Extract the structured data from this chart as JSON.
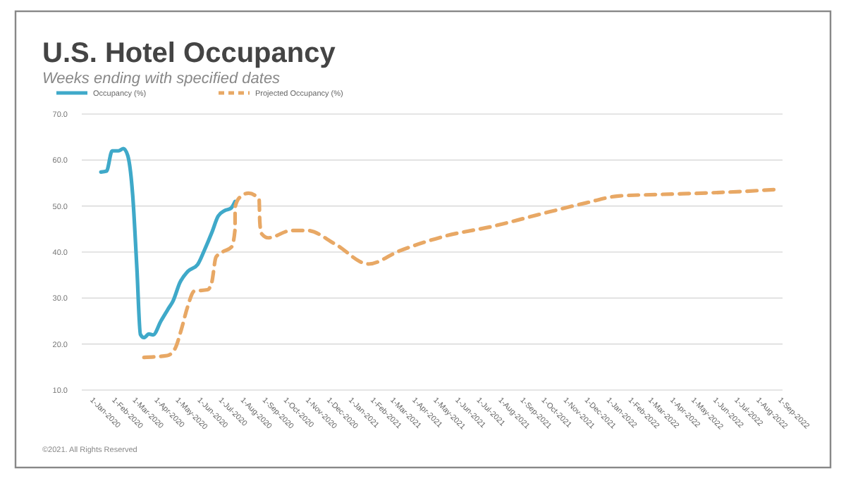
{
  "chart_data": {
    "type": "line",
    "title": "U.S. Hotel Occupancy",
    "subtitle": "Weeks ending with specified dates",
    "annotations": [
      "©2021. All Rights Reserved"
    ],
    "legend": "top left",
    "grid": "y",
    "marker": "none",
    "ylim": [
      10,
      70
    ],
    "yticks": [
      {
        "value": 10,
        "label": "10.0"
      },
      {
        "value": 20,
        "label": "20.0"
      },
      {
        "value": 30,
        "label": "30.0"
      },
      {
        "value": 40,
        "label": "40.0"
      },
      {
        "value": 50,
        "label": "50.0"
      },
      {
        "value": 60,
        "label": "60.0"
      },
      {
        "value": 70,
        "label": "70.0"
      }
    ],
    "xlim": [
      "2019-12-18",
      "2022-09-05"
    ],
    "xticks": [
      {
        "value": "2020-01-01",
        "label": "1-Jan-2020"
      },
      {
        "value": "2020-02-01",
        "label": "1-Feb-2020"
      },
      {
        "value": "2020-03-01",
        "label": "1-Mar-2020"
      },
      {
        "value": "2020-04-01",
        "label": "1-Apr-2020"
      },
      {
        "value": "2020-05-01",
        "label": "1-May-2020"
      },
      {
        "value": "2020-06-01",
        "label": "1-Jun-2020"
      },
      {
        "value": "2020-07-01",
        "label": "1-Jul-2020"
      },
      {
        "value": "2020-08-01",
        "label": "1-Aug-2020"
      },
      {
        "value": "2020-09-01",
        "label": "1-Sep-2020"
      },
      {
        "value": "2020-10-01",
        "label": "1-Oct-2020"
      },
      {
        "value": "2020-11-01",
        "label": "1-Nov-2020"
      },
      {
        "value": "2020-12-01",
        "label": "1-Dec-2020"
      },
      {
        "value": "2021-01-01",
        "label": "1-Jan-2021"
      },
      {
        "value": "2021-02-01",
        "label": "1-Feb-2021"
      },
      {
        "value": "2021-03-01",
        "label": "1-Mar-2021"
      },
      {
        "value": "2021-04-01",
        "label": "1-Apr-2021"
      },
      {
        "value": "2021-05-01",
        "label": "1-May-2021"
      },
      {
        "value": "2021-06-01",
        "label": "1-Jun-2021"
      },
      {
        "value": "2021-07-01",
        "label": "1-Jul-2021"
      },
      {
        "value": "2021-08-01",
        "label": "1-Aug-2021"
      },
      {
        "value": "2021-09-01",
        "label": "1-Sep-2021"
      },
      {
        "value": "2021-10-01",
        "label": "1-Oct-2021"
      },
      {
        "value": "2021-11-01",
        "label": "1-Nov-2021"
      },
      {
        "value": "2021-12-01",
        "label": "1-Dec-2021"
      },
      {
        "value": "2022-01-01",
        "label": "1-Jan-2022"
      },
      {
        "value": "2022-02-01",
        "label": "1-Feb-2022"
      },
      {
        "value": "2022-03-01",
        "label": "1-Mar-2022"
      },
      {
        "value": "2022-04-01",
        "label": "1-Apr-2022"
      },
      {
        "value": "2022-05-01",
        "label": "1-May-2022"
      },
      {
        "value": "2022-06-01",
        "label": "1-Jun-2022"
      },
      {
        "value": "2022-07-01",
        "label": "1-Jul-2022"
      },
      {
        "value": "2022-08-01",
        "label": "1-Aug-2022"
      },
      {
        "value": "2022-09-01",
        "label": "1-Sep-2022"
      }
    ],
    "series": [
      {
        "name": "Occupancy (%)",
        "color": "#3fa9c9",
        "line_style": "solid",
        "x": [
          "2020-01-14",
          "2020-01-22",
          "2020-01-30",
          "2020-02-08",
          "2020-02-15",
          "2020-02-21",
          "2020-02-28",
          "2020-03-05",
          "2020-03-10",
          "2020-03-15",
          "2020-03-22",
          "2020-03-28",
          "2020-04-08",
          "2020-04-19",
          "2020-04-25",
          "2020-05-05",
          "2020-05-16",
          "2020-05-30",
          "2020-06-08",
          "2020-06-19",
          "2020-06-28",
          "2020-07-07",
          "2020-07-16",
          "2020-07-22"
        ],
        "values": [
          57.4,
          57.6,
          62,
          62,
          62.5,
          61,
          52.5,
          36.5,
          22.1,
          21.4,
          22.2,
          22,
          25,
          27.8,
          29.3,
          33.4,
          35.8,
          37.3,
          40.2,
          44.2,
          47.8,
          49,
          49.5,
          51
        ]
      },
      {
        "name": "Projected Occupancy (%)",
        "color": "#e8a865",
        "line_style": "dashed",
        "x": [
          "2020-03-15",
          "2020-04-17",
          "2020-04-28",
          "2020-05-07",
          "2020-05-16",
          "2020-05-25",
          "2020-06-13",
          "2020-06-19",
          "2020-06-25",
          "2020-07-04",
          "2020-07-17",
          "2020-07-22",
          "2020-07-22",
          "2020-07-28",
          "2020-08-10",
          "2020-08-25",
          "2020-08-26",
          "2020-08-28",
          "2020-09-07",
          "2020-10-10",
          "2020-11-01",
          "2020-12-11",
          "2021-01-27",
          "2021-03-11",
          "2021-05-16",
          "2021-07-22",
          "2021-09-26",
          "2021-12-01",
          "2022-01-16",
          "2022-03-10",
          "2022-06-16",
          "2022-08-28"
        ],
        "values": [
          17.1,
          17.5,
          19,
          23.2,
          28.2,
          31.5,
          31.8,
          33.4,
          38.9,
          40,
          41.1,
          45,
          49.7,
          51.8,
          52.8,
          51.5,
          46.6,
          44.1,
          43.1,
          44.7,
          44.7,
          41.7,
          37.4,
          40.2,
          43.5,
          45.6,
          48.2,
          50.7,
          52.2,
          52.5,
          53,
          53.6
        ]
      }
    ]
  }
}
